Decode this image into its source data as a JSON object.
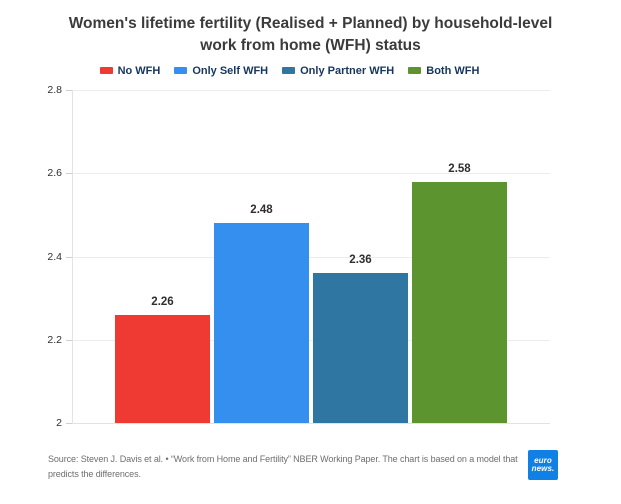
{
  "chart_data": {
    "type": "bar",
    "title": "Women's lifetime fertility (Realised + Planned) by household-level work from home (WFH) status",
    "categories": [
      "No WFH",
      "Only Self WFH",
      "Only Partner WFH",
      "Both WFH"
    ],
    "values": [
      2.26,
      2.48,
      2.36,
      2.58
    ],
    "value_labels": [
      "2.26",
      "2.48",
      "2.36",
      "2.58"
    ],
    "colors": [
      "#ee3a33",
      "#348fee",
      "#2f76a2",
      "#5c9430"
    ],
    "ylim": [
      2,
      2.8
    ],
    "yticks": [
      2,
      2.2,
      2.4,
      2.6,
      2.8
    ],
    "ytick_labels": [
      "2",
      "2.2",
      "2.4",
      "2.6",
      "2.8"
    ],
    "xlabel": "",
    "ylabel": "",
    "grid": true,
    "legend_position": "top"
  },
  "source": {
    "text": "Source: Steven J. Davis et al. • “Work from Home and Fertility” NBER Working Paper. The chart is based on a model that predicts the differences."
  },
  "logo": {
    "line1": "euro",
    "line2": "news.",
    "bg": "#1180e4"
  }
}
